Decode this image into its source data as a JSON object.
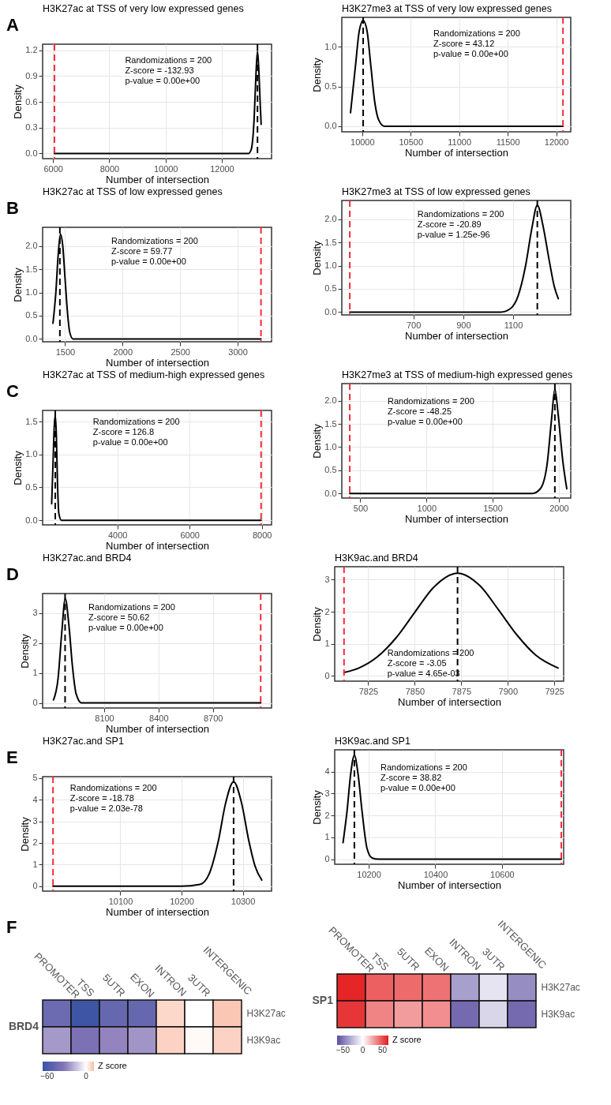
{
  "chart_data": [
    {
      "type": "line",
      "title": "H3K27ac at TSS of very low expressed genes",
      "xlabel": "Number of intersection",
      "ylabel": "Density",
      "xlim": [
        5630,
        13770
      ],
      "xticks": [
        6000,
        8000,
        10000,
        12000
      ],
      "ylim": [
        -0.06,
        1.27
      ],
      "yticks": [
        {
          "value": 0,
          "label": "0.0"
        },
        0.3,
        0.6,
        0.9,
        1.2
      ],
      "grid": true,
      "series": [
        {
          "color": "#000000",
          "x": [
            6050,
            12950,
            13050,
            13150,
            13220,
            13270,
            13320,
            13370,
            13400
          ],
          "values": [
            0,
            0,
            0.05,
            0.4,
            0.95,
            1.19,
            0.95,
            0.55,
            0.34
          ]
        }
      ],
      "ref_lines": [
        {
          "axis": "x",
          "value": 6050,
          "color": "#f82a3c",
          "line_style": "dashed"
        },
        {
          "axis": "x",
          "value": 13270,
          "color": "#000000",
          "line_style": "dashed"
        }
      ],
      "annotations": [
        "A",
        "Randomizations = 200",
        "Z-score = -132.93",
        "p-value = 0.00e+00"
      ]
    },
    {
      "type": "line",
      "title": "H3K27me3 at TSS of very low expressed genes",
      "xlabel": "Number of intersection",
      "ylabel": "Density",
      "xlim": [
        9790,
        12150
      ],
      "xticks": [
        10000,
        10500,
        11000,
        11500,
        12000
      ],
      "ylim": [
        -0.07,
        1.37
      ],
      "yticks": [
        {
          "value": 0,
          "label": "0.0"
        },
        0.5,
        {
          "value": 1,
          "label": "1.0"
        }
      ],
      "grid": true,
      "series": [
        {
          "color": "#000000",
          "x": [
            9880,
            9930,
            9970,
            10010,
            10050,
            10090,
            10130,
            10170,
            10230,
            12070
          ],
          "values": [
            0.17,
            0.75,
            1.2,
            1.33,
            1.2,
            0.75,
            0.3,
            0.08,
            0,
            0
          ]
        }
      ],
      "ref_lines": [
        {
          "axis": "x",
          "value": 12070,
          "color": "#f82a3c",
          "line_style": "dashed"
        },
        {
          "axis": "x",
          "value": 10010,
          "color": "#000000",
          "line_style": "dashed"
        }
      ],
      "annotations": [
        "Randomizations = 200",
        "Z-score = 43.12",
        "p-value = 0.00e+00"
      ]
    },
    {
      "type": "line",
      "title": "H3K27ac at TSS of low expressed genes",
      "xlabel": "Number of intersection",
      "ylabel": "Density",
      "xlim": [
        1305,
        3295
      ],
      "xticks": [
        1500,
        2000,
        2500,
        3000
      ],
      "ylim": [
        -0.06,
        2.4
      ],
      "yticks": [
        {
          "value": 0,
          "label": "0.0"
        },
        0.5,
        {
          "value": 1,
          "label": "1.0"
        },
        1.5,
        {
          "value": 2,
          "label": "2.0"
        }
      ],
      "grid": true,
      "series": [
        {
          "color": "#000000",
          "x": [
            1395,
            1420,
            1440,
            1460,
            1480,
            1500,
            1520,
            1540,
            1570,
            3203
          ],
          "values": [
            0.34,
            1.0,
            1.8,
            2.25,
            2.0,
            1.3,
            0.6,
            0.15,
            0,
            0
          ]
        }
      ],
      "ref_lines": [
        {
          "axis": "x",
          "value": 3203,
          "color": "#f82a3c",
          "line_style": "dashed"
        },
        {
          "axis": "x",
          "value": 1455,
          "color": "#000000",
          "line_style": "dashed"
        }
      ],
      "annotations": [
        "B",
        "Randomizations = 200",
        "Z-score = 59.77",
        "p-value = 0.00e+00"
      ]
    },
    {
      "type": "line",
      "title": "H3K27me3 at TSS of low expressed genes",
      "xlabel": "Number of intersection",
      "ylabel": "Density",
      "xlim": [
        413,
        1331
      ],
      "xticks": [
        700,
        900,
        1100
      ],
      "ylim": [
        -0.06,
        2.4
      ],
      "yticks": [
        {
          "value": 0,
          "label": "0.0"
        },
        0.5,
        {
          "value": 1,
          "label": "1.0"
        },
        1.5,
        {
          "value": 2,
          "label": "2.0"
        }
      ],
      "grid": true,
      "series": [
        {
          "color": "#000000",
          "x": [
            445,
            1050,
            1090,
            1120,
            1150,
            1175,
            1197,
            1220,
            1245,
            1265,
            1281
          ],
          "values": [
            0,
            0,
            0.08,
            0.35,
            1.0,
            1.8,
            2.3,
            1.85,
            1.1,
            0.55,
            0.29
          ]
        }
      ],
      "ref_lines": [
        {
          "axis": "x",
          "value": 445,
          "color": "#f82a3c",
          "line_style": "dashed"
        },
        {
          "axis": "x",
          "value": 1197,
          "color": "#000000",
          "line_style": "dashed"
        }
      ],
      "annotations": [
        "Randomizations = 200",
        "Z-score = -20.89",
        "p-value = 1.25e-96"
      ]
    },
    {
      "type": "line",
      "title": "H3K27ac at TSS of medium-high expressed genes",
      "xlabel": "Number of intersection",
      "ylabel": "Density",
      "xlim": [
        1930,
        8270
      ],
      "xticks": [
        4000,
        6000,
        8000
      ],
      "ylim": [
        -0.07,
        1.67
      ],
      "yticks": [
        {
          "value": 0,
          "label": "0.0"
        },
        0.5,
        {
          "value": 1,
          "label": "1.0"
        },
        1.5
      ],
      "grid": true,
      "series": [
        {
          "color": "#000000",
          "x": [
            2180,
            2220,
            2250,
            2280,
            2310,
            2340,
            2380,
            2450,
            7980
          ],
          "values": [
            0.25,
            0.9,
            1.4,
            1.6,
            1.3,
            0.6,
            0.1,
            0,
            0
          ]
        }
      ],
      "ref_lines": [
        {
          "axis": "x",
          "value": 7980,
          "color": "#f82a3c",
          "line_style": "dashed"
        },
        {
          "axis": "x",
          "value": 2280,
          "color": "#000000",
          "line_style": "dashed"
        }
      ],
      "annotations": [
        "C",
        "Randomizations = 200",
        "Z-score = 126.8",
        "p-value = 0.00e+00"
      ]
    },
    {
      "type": "line",
      "title": "H3K27me3 at TSS of medium-high expressed genes",
      "xlabel": "Number of intersection",
      "ylabel": "Density",
      "xlim": [
        360,
        2090
      ],
      "xticks": [
        500,
        1000,
        1500,
        2000
      ],
      "ylim": [
        -0.1,
        2.37
      ],
      "yticks": [
        {
          "value": 0,
          "label": "0.0"
        },
        0.5,
        {
          "value": 1,
          "label": "1.0"
        },
        1.5,
        {
          "value": 2,
          "label": "2.0"
        }
      ],
      "grid": true,
      "series": [
        {
          "color": "#000000",
          "x": [
            420,
            1800,
            1860,
            1910,
            1945,
            1970,
            1995,
            2030,
            2060
          ],
          "values": [
            0,
            0,
            0.1,
            0.6,
            1.6,
            2.25,
            1.7,
            0.7,
            0.1
          ]
        }
      ],
      "ref_lines": [
        {
          "axis": "x",
          "value": 420,
          "color": "#f82a3c",
          "line_style": "dashed"
        },
        {
          "axis": "x",
          "value": 1970,
          "color": "#000000",
          "line_style": "dashed"
        }
      ],
      "annotations": [
        "Randomizations = 200",
        "Z-score = -48.25",
        "p-value = 0.00e+00"
      ]
    },
    {
      "type": "line",
      "title": "H3K27ac.and BRD4",
      "xlabel": "Number of intersection",
      "ylabel": "Density",
      "xlim": [
        7760,
        9024
      ],
      "xticks": [
        8100,
        8400,
        8700
      ],
      "ylim": [
        -0.17,
        3.65
      ],
      "yticks": [
        0,
        1,
        2,
        3
      ],
      "grid": true,
      "series": [
        {
          "color": "#000000",
          "x": [
            7820,
            7845,
            7865,
            7885,
            7905,
            7925,
            7945,
            7975,
            8964
          ],
          "values": [
            0.1,
            0.8,
            2.3,
            3.48,
            2.6,
            1.2,
            0.3,
            0,
            0
          ]
        }
      ],
      "ref_lines": [
        {
          "axis": "x",
          "value": 8964,
          "color": "#f82a3c",
          "line_style": "dashed"
        },
        {
          "axis": "x",
          "value": 7884,
          "color": "#000000",
          "line_style": "dashed"
        }
      ],
      "annotations": [
        "D",
        "Randomizations = 200",
        "Z-score = 50.62",
        "p-value = 0.00e+00"
      ]
    },
    {
      "type": "line",
      "title": "H3K9ac.and BRD4",
      "xlabel": "Number of intersection",
      "ylabel": "Density",
      "xlim": [
        7807,
        7930
      ],
      "xticks": [
        7825,
        7850,
        7875,
        7900,
        7925
      ],
      "ylim": [
        -0.16,
        3.4
      ],
      "yticks": [
        0,
        1,
        2,
        3
      ],
      "grid": true,
      "series": [
        {
          "color": "#000000",
          "x": [
            7812,
            7820,
            7830,
            7840,
            7850,
            7860,
            7873,
            7885,
            7895,
            7905,
            7915,
            7927
          ],
          "values": [
            0.11,
            0.25,
            0.6,
            1.19,
            1.98,
            2.75,
            3.2,
            2.81,
            2.06,
            1.27,
            0.65,
            0.25
          ]
        }
      ],
      "ref_lines": [
        {
          "axis": "x",
          "value": 7812,
          "color": "#f82a3c",
          "line_style": "dashed"
        },
        {
          "axis": "x",
          "value": 7873,
          "color": "#000000",
          "line_style": "dashed"
        }
      ],
      "annotations": [
        "Randomizations = 200",
        "Z-score = -3.05",
        "p-value = 4.65e-03"
      ]
    },
    {
      "type": "line",
      "title": "H3K27ac.and SP1",
      "xlabel": "Number of intersection",
      "ylabel": "Density",
      "xlim": [
        9973,
        10347
      ],
      "xticks": [
        10100,
        10200,
        10300
      ],
      "ylim": [
        -0.23,
        5.07
      ],
      "yticks": [
        0,
        1,
        2,
        3,
        4,
        5
      ],
      "grid": true,
      "series": [
        {
          "color": "#000000",
          "x": [
            9990,
            10200,
            10230,
            10245,
            10260,
            10272,
            10285,
            10298,
            10310,
            10320,
            10331
          ],
          "values": [
            0,
            0,
            0.08,
            0.56,
            2.08,
            3.85,
            4.83,
            3.85,
            2.08,
            0.93,
            0.28
          ]
        }
      ],
      "ref_lines": [
        {
          "axis": "x",
          "value": 9990,
          "color": "#f82a3c",
          "line_style": "dashed"
        },
        {
          "axis": "x",
          "value": 10285,
          "color": "#000000",
          "line_style": "dashed"
        }
      ],
      "annotations": [
        "E",
        "Randomizations = 200",
        "Z-score = -18.78",
        "p-value = 2.03e-78"
      ]
    },
    {
      "type": "line",
      "title": "H3K9ac.and SP1",
      "xlabel": "Number of intersection",
      "ylabel": "Density",
      "xlim": [
        10098,
        10785
      ],
      "xticks": [
        10200,
        10400,
        10600
      ],
      "ylim": [
        -0.23,
        5.0
      ],
      "yticks": [
        0,
        1,
        2,
        3,
        4
      ],
      "grid": true,
      "series": [
        {
          "color": "#000000",
          "x": [
            10123,
            10135,
            10146,
            10157,
            10168,
            10180,
            10195,
            10210,
            10230,
            10778
          ],
          "values": [
            0.76,
            2.2,
            3.9,
            4.75,
            3.9,
            2.2,
            0.49,
            0.06,
            0,
            0
          ]
        }
      ],
      "ref_lines": [
        {
          "axis": "x",
          "value": 10778,
          "color": "#f82a3c",
          "line_style": "dashed"
        },
        {
          "axis": "x",
          "value": 10157,
          "color": "#000000",
          "line_style": "dashed"
        }
      ],
      "annotations": [
        "Randomizations = 200",
        "Z-score = 38.82",
        "p-value = 0.00e+00"
      ]
    },
    {
      "type": "heatmap",
      "ylabel": "BRD4",
      "categories": [
        "PROMOTER",
        "TSS",
        "5UTR",
        "EXON",
        "INTRON",
        "3UTR",
        "INTERGENIC"
      ],
      "y_categories": [
        "H3K27ac",
        "H3K9ac"
      ],
      "cells": [
        [
          -45,
          -65,
          -48,
          -48,
          7,
          0,
          10
        ],
        [
          -25,
          -38,
          -30,
          -26,
          8,
          1,
          8
        ]
      ],
      "clabel": "Z score",
      "clim": [
        -67,
        12
      ],
      "cticks": [
        -60,
        0
      ],
      "annotations": [
        "F"
      ]
    },
    {
      "type": "heatmap",
      "ylabel": "SP1",
      "categories": [
        "PROMOTER",
        "TSS",
        "5UTR",
        "EXON",
        "INTRON",
        "3UTR",
        "INTERGENIC"
      ],
      "y_categories": [
        "H3K27ac",
        "H3K9ac"
      ],
      "cells": [
        [
          62,
          45,
          42,
          40,
          -35,
          -10,
          -42
        ],
        [
          57,
          35,
          28,
          32,
          -55,
          -15,
          -55
        ]
      ],
      "clabel": "Z score",
      "clim": [
        -65,
        65
      ],
      "cticks": [
        -50,
        0,
        50
      ]
    }
  ]
}
